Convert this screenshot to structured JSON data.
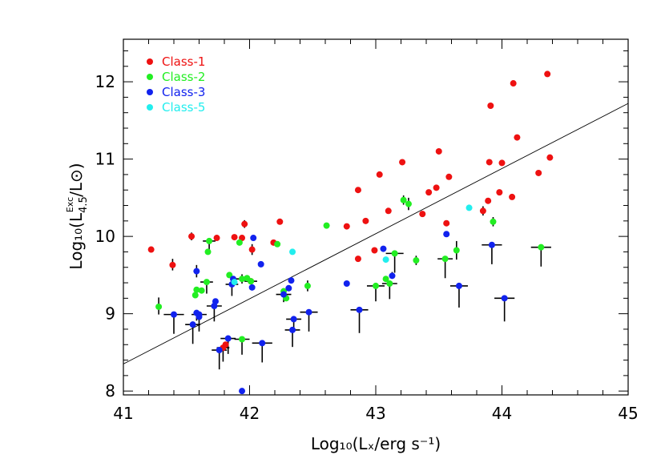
{
  "chart_data": {
    "type": "scatter",
    "xlabel": "Log₁₀(Lₓ/erg s⁻¹)",
    "ylabel_parts": {
      "prefix": "Log₁₀(L",
      "sub": "4.5",
      "sup": "Exc",
      "suffix": "/L⊙)"
    },
    "xlim": [
      41,
      45
    ],
    "ylim": [
      7.95,
      12.55
    ],
    "xticks": [
      "41",
      "42",
      "43",
      "44",
      "45"
    ],
    "yticks": [
      "8",
      "9",
      "10",
      "11",
      "12"
    ],
    "grid": false,
    "legend_position": "top-left",
    "fit_line": {
      "x": [
        41,
        45
      ],
      "y": [
        8.35,
        11.72
      ],
      "color": "#000000"
    },
    "series": [
      {
        "name": "Class-1",
        "color": "#ee1111",
        "points": [
          [
            41.22,
            9.83
          ],
          [
            41.39,
            9.63
          ],
          [
            41.54,
            10.0
          ],
          [
            41.74,
            9.98
          ],
          [
            41.88,
            9.99
          ],
          [
            41.94,
            9.98
          ],
          [
            41.96,
            10.16
          ],
          [
            42.01,
            9.42
          ],
          [
            42.02,
            9.83
          ],
          [
            42.19,
            9.92
          ],
          [
            42.24,
            10.19
          ],
          [
            41.79,
            8.56
          ],
          [
            41.81,
            8.6
          ],
          [
            42.77,
            10.13
          ],
          [
            42.86,
            10.6
          ],
          [
            42.86,
            9.71
          ],
          [
            42.92,
            10.2
          ],
          [
            42.99,
            9.82
          ],
          [
            43.03,
            10.8
          ],
          [
            43.1,
            10.33
          ],
          [
            43.21,
            10.96
          ],
          [
            43.37,
            10.29
          ],
          [
            43.42,
            10.57
          ],
          [
            43.48,
            10.63
          ],
          [
            43.5,
            11.1
          ],
          [
            43.56,
            10.17
          ],
          [
            43.58,
            10.77
          ],
          [
            43.85,
            10.33
          ],
          [
            43.89,
            10.46
          ],
          [
            43.9,
            10.96
          ],
          [
            43.91,
            11.69
          ],
          [
            43.98,
            10.57
          ],
          [
            44.0,
            10.95
          ],
          [
            44.08,
            10.51
          ],
          [
            44.09,
            11.98
          ],
          [
            44.12,
            11.28
          ],
          [
            44.29,
            10.82
          ],
          [
            44.36,
            12.1
          ],
          [
            44.38,
            11.02
          ]
        ]
      },
      {
        "name": "Class-2",
        "color": "#22ee22",
        "points": [
          [
            41.28,
            9.09
          ],
          [
            41.57,
            9.24
          ],
          [
            41.58,
            9.31
          ],
          [
            41.62,
            9.3
          ],
          [
            41.66,
            9.41
          ],
          [
            41.67,
            9.8
          ],
          [
            41.68,
            9.94
          ],
          [
            41.84,
            9.5
          ],
          [
            41.92,
            9.92
          ],
          [
            41.94,
            9.45
          ],
          [
            41.94,
            8.67
          ],
          [
            41.98,
            9.46
          ],
          [
            42.01,
            9.42
          ],
          [
            42.22,
            9.9
          ],
          [
            42.27,
            9.29
          ],
          [
            42.29,
            9.2
          ],
          [
            42.46,
            9.36
          ],
          [
            42.61,
            10.14
          ],
          [
            43.0,
            9.36
          ],
          [
            43.08,
            9.45
          ],
          [
            43.11,
            9.39
          ],
          [
            43.15,
            9.78
          ],
          [
            43.22,
            10.47
          ],
          [
            43.26,
            10.42
          ],
          [
            43.32,
            9.69
          ],
          [
            43.55,
            9.71
          ],
          [
            43.64,
            9.82
          ],
          [
            43.93,
            10.19
          ],
          [
            44.31,
            9.86
          ]
        ]
      },
      {
        "name": "Class-3",
        "color": "#1122ee",
        "points": [
          [
            41.4,
            8.99
          ],
          [
            41.55,
            8.86
          ],
          [
            41.58,
            9.55
          ],
          [
            41.58,
            9.01
          ],
          [
            41.6,
            8.99
          ],
          [
            41.6,
            8.96
          ],
          [
            41.72,
            9.1
          ],
          [
            41.73,
            9.16
          ],
          [
            41.76,
            8.53
          ],
          [
            41.83,
            8.68
          ],
          [
            41.86,
            9.38
          ],
          [
            41.87,
            9.45
          ],
          [
            41.94,
            8.0
          ],
          [
            42.02,
            9.34
          ],
          [
            42.03,
            9.98
          ],
          [
            42.09,
            9.64
          ],
          [
            42.1,
            8.62
          ],
          [
            42.27,
            9.25
          ],
          [
            42.31,
            9.33
          ],
          [
            42.33,
            9.43
          ],
          [
            42.34,
            8.79
          ],
          [
            42.35,
            8.93
          ],
          [
            42.47,
            9.02
          ],
          [
            42.77,
            9.39
          ],
          [
            42.87,
            9.05
          ],
          [
            43.06,
            9.84
          ],
          [
            43.13,
            9.49
          ],
          [
            43.56,
            10.03
          ],
          [
            43.66,
            9.36
          ],
          [
            43.92,
            9.89
          ],
          [
            44.02,
            9.2
          ]
        ]
      },
      {
        "name": "Class-5",
        "color": "#22eeee",
        "points": [
          [
            41.88,
            9.41
          ],
          [
            42.34,
            9.8
          ],
          [
            43.08,
            9.7
          ],
          [
            43.74,
            10.37
          ]
        ]
      }
    ],
    "errorbars": [
      [
        41.28,
        9.09,
        0,
        0.12,
        0.1
      ],
      [
        41.4,
        8.99,
        0.08,
        0,
        0.25
      ],
      [
        41.39,
        9.63,
        0,
        0.08,
        0.07
      ],
      [
        41.54,
        10.0,
        0,
        0.05,
        0.05
      ],
      [
        41.55,
        8.86,
        0.06,
        0,
        0.25
      ],
      [
        41.58,
        9.55,
        0,
        0.08,
        0.08
      ],
      [
        41.6,
        8.99,
        0.06,
        0,
        0.22
      ],
      [
        41.66,
        9.41,
        0.05,
        0,
        0.15
      ],
      [
        41.68,
        9.94,
        0.05,
        0,
        0.15
      ],
      [
        41.72,
        9.1,
        0.06,
        0,
        0.2
      ],
      [
        41.76,
        8.53,
        0.06,
        0,
        0.25
      ],
      [
        41.79,
        8.56,
        0.05,
        0,
        0.18
      ],
      [
        41.83,
        8.68,
        0.06,
        0,
        0.2
      ],
      [
        41.86,
        9.38,
        0.05,
        0,
        0.15
      ],
      [
        41.94,
        8.67,
        0.06,
        0,
        0.2
      ],
      [
        41.94,
        9.45,
        0.05,
        0.06,
        0.06
      ],
      [
        41.96,
        10.16,
        0,
        0.05,
        0.05
      ],
      [
        42.01,
        9.42,
        0.05,
        0,
        0
      ],
      [
        42.02,
        9.83,
        0,
        0.07,
        0.07
      ],
      [
        42.1,
        8.62,
        0.08,
        0,
        0.25
      ],
      [
        42.27,
        9.25,
        0.06,
        0.08,
        0.1
      ],
      [
        42.34,
        8.79,
        0.06,
        0,
        0.22
      ],
      [
        42.35,
        8.93,
        0.06,
        0,
        0.15
      ],
      [
        42.46,
        9.36,
        0,
        0.07,
        0.07
      ],
      [
        42.47,
        9.02,
        0.07,
        0,
        0.25
      ],
      [
        42.87,
        9.05,
        0.07,
        0,
        0.3
      ],
      [
        43.0,
        9.36,
        0.07,
        0,
        0.2
      ],
      [
        43.11,
        9.39,
        0.06,
        0,
        0.2
      ],
      [
        43.15,
        9.78,
        0.07,
        0,
        0.25
      ],
      [
        43.13,
        9.49,
        0,
        0.05,
        0
      ],
      [
        43.26,
        10.42,
        0,
        0.08,
        0.08
      ],
      [
        43.22,
        10.47,
        0,
        0.06,
        0.06
      ],
      [
        43.32,
        9.69,
        0,
        0.06,
        0.06
      ],
      [
        43.55,
        9.71,
        0.06,
        0,
        0.25
      ],
      [
        43.64,
        9.82,
        0,
        0.12,
        0.12
      ],
      [
        43.66,
        9.36,
        0.07,
        0,
        0.28
      ],
      [
        43.85,
        10.33,
        0,
        0.06,
        0.06
      ],
      [
        43.93,
        10.19,
        0,
        0.06,
        0.06
      ],
      [
        43.92,
        9.89,
        0.08,
        0,
        0.25
      ],
      [
        44.02,
        9.2,
        0.08,
        0,
        0.3
      ],
      [
        44.31,
        9.86,
        0.08,
        0,
        0.25
      ],
      [
        41.58,
        9.01,
        0,
        0.03,
        0.1
      ]
    ]
  }
}
